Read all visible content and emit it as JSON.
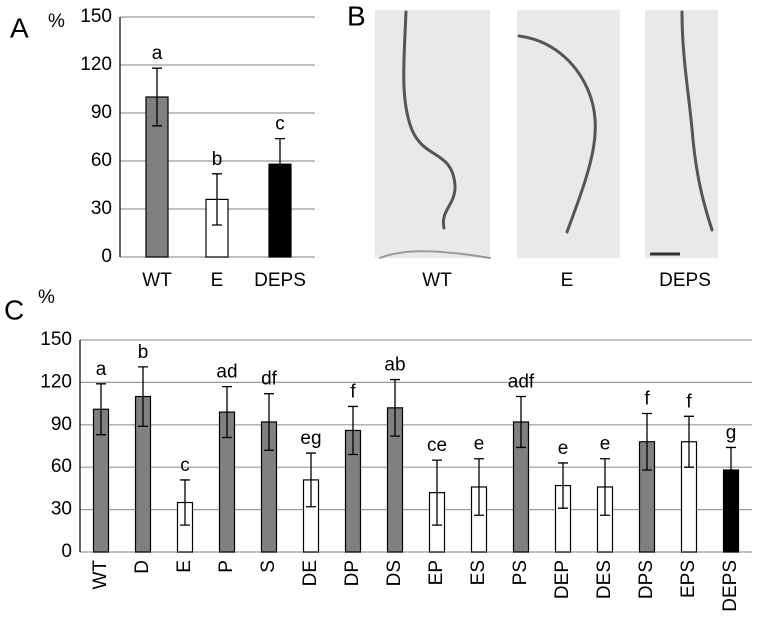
{
  "chart_data": [
    {
      "type": "bar",
      "panel": "A",
      "ylabel": "%",
      "categories": [
        "WT",
        "E",
        "DEPS"
      ],
      "values": [
        100,
        36,
        58
      ],
      "errors": [
        18,
        16,
        16
      ],
      "colors": [
        "#808080",
        "#ffffff",
        "#000000"
      ],
      "annotations": [
        "a",
        "b",
        "c"
      ],
      "ylim": [
        0,
        150
      ],
      "yticks": [
        0,
        30,
        60,
        90,
        120,
        150
      ],
      "grid": true
    },
    {
      "type": "bar",
      "panel": "C",
      "ylabel": "%",
      "categories": [
        "WT",
        "D",
        "E",
        "P",
        "S",
        "DE",
        "DP",
        "DS",
        "EP",
        "ES",
        "PS",
        "DEP",
        "DES",
        "DPS",
        "EPS",
        "DEPS"
      ],
      "values": [
        101,
        110,
        35,
        99,
        92,
        51,
        86,
        102,
        42,
        46,
        92,
        47,
        46,
        78,
        78,
        58
      ],
      "errors": [
        18,
        21,
        16,
        18,
        20,
        19,
        17,
        20,
        23,
        20,
        18,
        16,
        20,
        20,
        18,
        16
      ],
      "colors": [
        "#808080",
        "#808080",
        "#ffffff",
        "#808080",
        "#808080",
        "#ffffff",
        "#808080",
        "#808080",
        "#ffffff",
        "#ffffff",
        "#808080",
        "#ffffff",
        "#ffffff",
        "#808080",
        "#ffffff",
        "#000000"
      ],
      "annotations": [
        "a",
        "b",
        "c",
        "ad",
        "df",
        "eg",
        "f",
        "ab",
        "ce",
        "e",
        "adf",
        "e",
        "e",
        "f",
        "f",
        "g"
      ],
      "ylim": [
        0,
        150
      ],
      "yticks": [
        0,
        30,
        60,
        90,
        120,
        150
      ],
      "grid": true
    }
  ],
  "images": {
    "panel": "B",
    "labels": [
      "WT",
      "E",
      "DEPS"
    ]
  }
}
